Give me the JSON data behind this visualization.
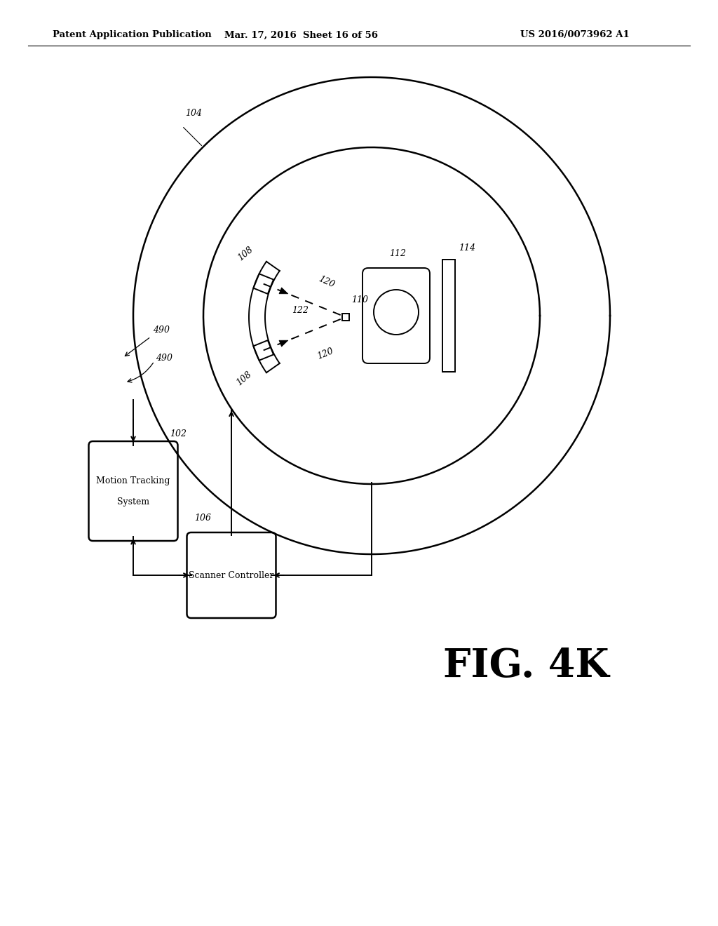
{
  "bg_color": "#ffffff",
  "text_color": "#000000",
  "header_left": "Patent Application Publication",
  "header_mid": "Mar. 17, 2016  Sheet 16 of 56",
  "header_right": "US 2016/0073962 A1",
  "fig_label": "FIG. 4K",
  "label_104": "104",
  "label_490": "490",
  "label_102": "102",
  "label_106": "106",
  "label_108": "108",
  "label_110": "110",
  "label_112": "112",
  "label_114": "114",
  "label_120": "120",
  "label_122": "122"
}
